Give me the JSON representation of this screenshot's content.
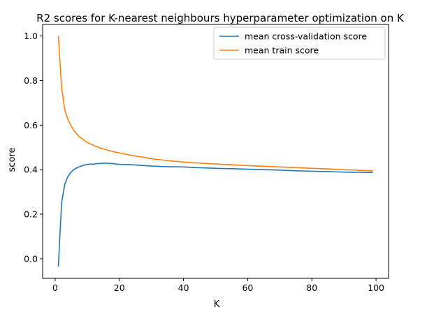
{
  "chart_data": {
    "type": "line",
    "title": "R2 scores for K-nearest neighbours hyperparameter optimization on K",
    "xlabel": "K",
    "ylabel": "score",
    "xlim": [
      -3.9,
      103.9
    ],
    "ylim": [
      -0.088,
      1.052
    ],
    "xticks": [
      0,
      20,
      40,
      60,
      80,
      100
    ],
    "yticks": [
      0.0,
      0.2,
      0.4,
      0.6,
      0.8,
      1.0
    ],
    "ytick_labels": [
      "0.0",
      "0.2",
      "0.4",
      "0.6",
      "0.8",
      "1.0"
    ],
    "grid": false,
    "legend_position": "top-right",
    "series": [
      {
        "name": "mean cross-validation score",
        "color": "#1f77b4",
        "x": [
          1,
          2,
          3,
          4,
          5,
          6,
          7,
          8,
          9,
          10,
          11,
          12,
          13,
          14,
          15,
          16,
          17,
          18,
          19,
          20,
          22,
          24,
          26,
          28,
          30,
          33,
          36,
          40,
          44,
          48,
          52,
          56,
          60,
          65,
          70,
          75,
          80,
          85,
          90,
          95,
          99
        ],
        "y": [
          -0.035,
          0.25,
          0.335,
          0.37,
          0.39,
          0.402,
          0.41,
          0.415,
          0.42,
          0.424,
          0.425,
          0.424,
          0.427,
          0.428,
          0.429,
          0.429,
          0.428,
          0.427,
          0.425,
          0.424,
          0.423,
          0.422,
          0.42,
          0.418,
          0.416,
          0.414,
          0.413,
          0.412,
          0.409,
          0.407,
          0.405,
          0.404,
          0.402,
          0.4,
          0.398,
          0.395,
          0.393,
          0.391,
          0.389,
          0.388,
          0.387
        ]
      },
      {
        "name": "mean train score",
        "color": "#ff7f0e",
        "x": [
          1,
          2,
          3,
          4,
          5,
          6,
          7,
          8,
          9,
          10,
          11,
          12,
          13,
          14,
          15,
          16,
          17,
          18,
          19,
          20,
          22,
          24,
          26,
          28,
          30,
          33,
          36,
          40,
          44,
          48,
          52,
          56,
          60,
          65,
          70,
          75,
          80,
          85,
          90,
          95,
          99
        ],
        "y": [
          1.0,
          0.77,
          0.668,
          0.625,
          0.595,
          0.572,
          0.556,
          0.542,
          0.532,
          0.522,
          0.515,
          0.509,
          0.503,
          0.497,
          0.493,
          0.489,
          0.485,
          0.481,
          0.478,
          0.475,
          0.469,
          0.463,
          0.459,
          0.454,
          0.449,
          0.444,
          0.439,
          0.434,
          0.43,
          0.427,
          0.424,
          0.421,
          0.418,
          0.415,
          0.412,
          0.409,
          0.406,
          0.403,
          0.4,
          0.397,
          0.395
        ]
      }
    ]
  }
}
